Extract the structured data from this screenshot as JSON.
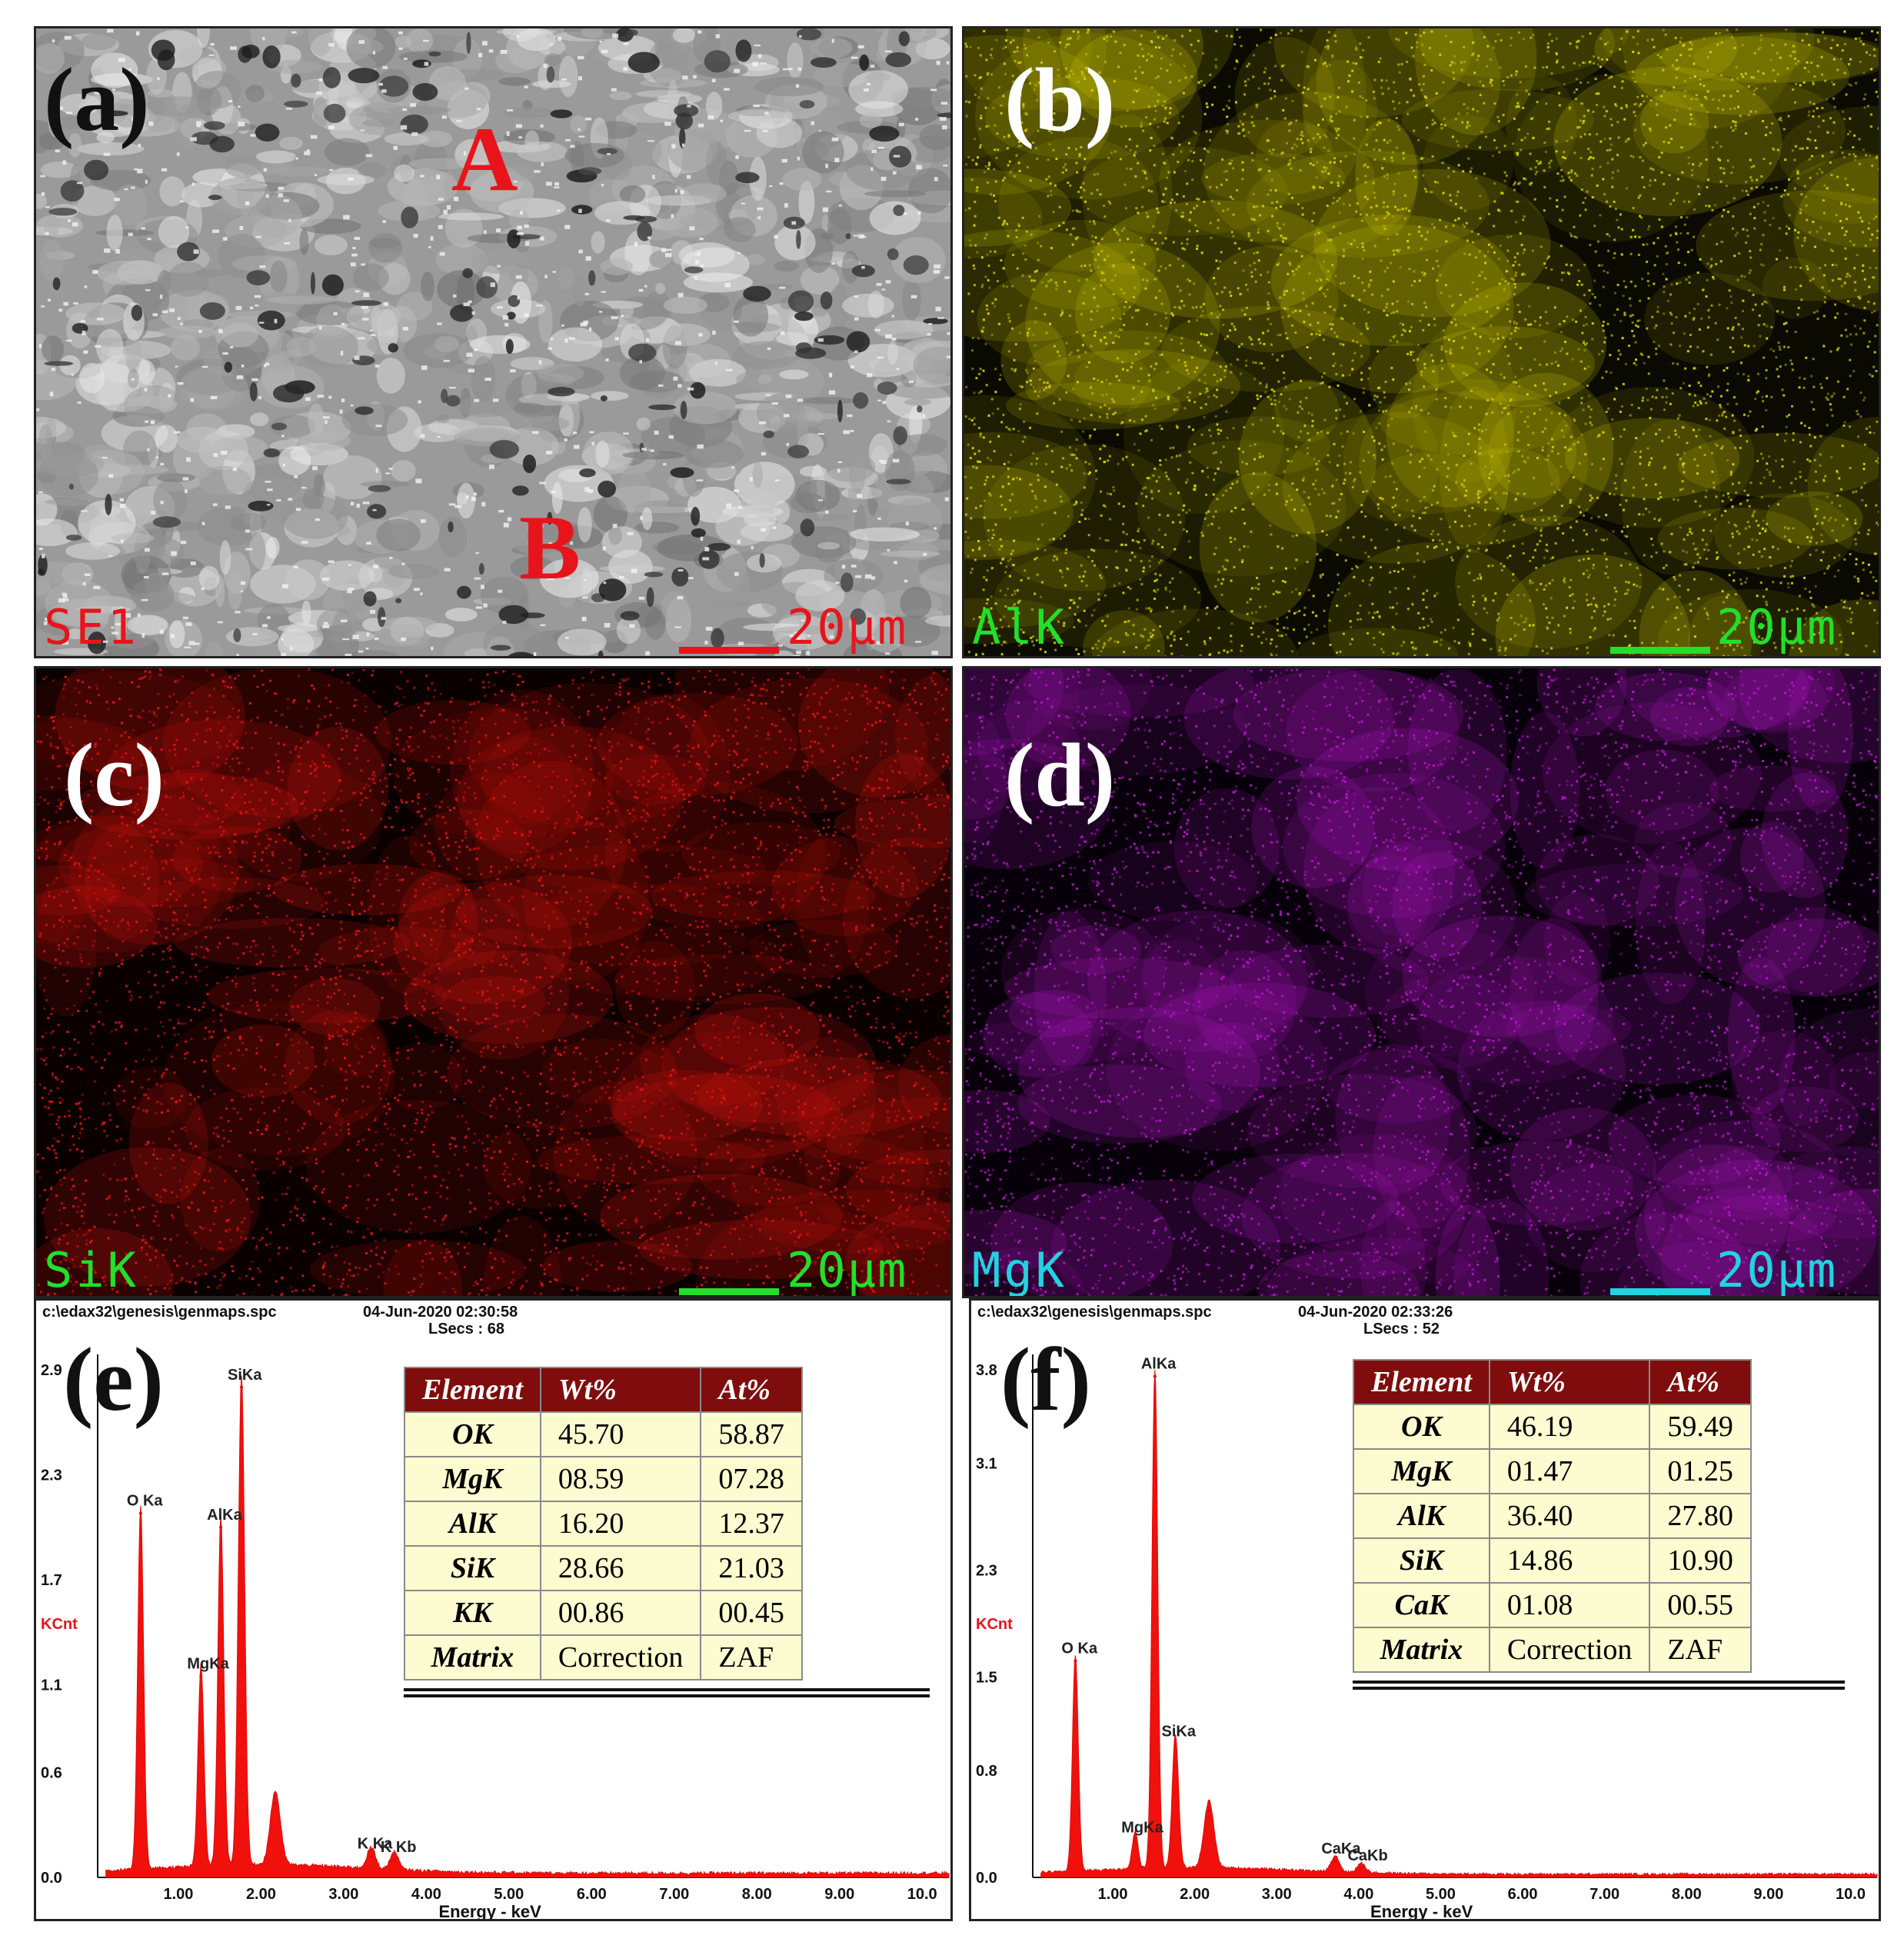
{
  "panels": [
    {
      "id": "a",
      "label": "(a)",
      "channel": "SE1",
      "scale": "20µm",
      "channel_color": "#e8141b",
      "scale_color": "#e8141b",
      "base": "#8a8a8a",
      "markers": [
        "A",
        "B"
      ]
    },
    {
      "id": "b",
      "label": "(b)",
      "channel": "AlK",
      "scale": "20µm",
      "channel_color": "#22e02a",
      "scale_color": "#22e02a",
      "base": "#d4d000"
    },
    {
      "id": "c",
      "label": "(c)",
      "channel": "SiK",
      "scale": "20µm",
      "channel_color": "#22e02a",
      "scale_color": "#22e02a",
      "base": "#e0140f"
    },
    {
      "id": "d",
      "label": "(d)",
      "channel": "MgK",
      "scale": "20µm",
      "channel_color": "#22d3e0",
      "scale_color": "#22d3e0",
      "base": "#b416c8"
    }
  ],
  "spectra": [
    {
      "id": "e",
      "label": "(e)",
      "path": "c:\\edax32\\genesis\\genmaps.spc",
      "datetime": "04-Jun-2020 02:30:58",
      "lsecs": "LSecs :  68",
      "ylabel": "KCnt",
      "xlabel": "Energy - keV",
      "yticks": [
        "0.0",
        "0.6",
        "1.1",
        "1.7",
        "2.3",
        "2.9"
      ],
      "ymax": 2.9,
      "xticks": [
        "1.00",
        "2.00",
        "3.00",
        "4.00",
        "5.00",
        "6.00",
        "7.00",
        "8.00",
        "9.00",
        "10.0"
      ],
      "peaks": [
        {
          "x": 0.52,
          "y": 2.08,
          "w": 0.035,
          "label": "O Ka"
        },
        {
          "x": 1.25,
          "y": 1.15,
          "w": 0.035,
          "label": "MgKa"
        },
        {
          "x": 1.49,
          "y": 2.0,
          "w": 0.035,
          "label": "AlKa"
        },
        {
          "x": 1.74,
          "y": 2.8,
          "w": 0.038,
          "label": "SiKa"
        },
        {
          "x": 2.15,
          "y": 0.42,
          "w": 0.06,
          "label": ""
        },
        {
          "x": 3.31,
          "y": 0.12,
          "w": 0.05,
          "label": "K Ka"
        },
        {
          "x": 3.59,
          "y": 0.1,
          "w": 0.05,
          "label": "K Kb"
        }
      ],
      "table": {
        "headers": [
          "Element",
          "Wt%",
          "At%"
        ],
        "rows": [
          [
            "OK",
            "45.70",
            "58.87"
          ],
          [
            "MgK",
            "08.59",
            "07.28"
          ],
          [
            "AlK",
            "16.20",
            "12.37"
          ],
          [
            "SiK",
            "28.66",
            "21.03"
          ],
          [
            "KK",
            "00.86",
            "00.45"
          ],
          [
            "Matrix",
            "Correction",
            "ZAF"
          ]
        ]
      }
    },
    {
      "id": "f",
      "label": "(f)",
      "path": "c:\\edax32\\genesis\\genmaps.spc",
      "datetime": "04-Jun-2020 02:33:26",
      "lsecs": "LSecs :  52",
      "ylabel": "KCnt",
      "xlabel": "Energy - keV",
      "yticks": [
        "0.0",
        "0.8",
        "1.5",
        "2.3",
        "3.1",
        "3.8"
      ],
      "ymax": 3.8,
      "xticks": [
        "1.00",
        "2.00",
        "3.00",
        "4.00",
        "5.00",
        "6.00",
        "7.00",
        "8.00",
        "9.00",
        "10.0"
      ],
      "peaks": [
        {
          "x": 0.52,
          "y": 1.62,
          "w": 0.035,
          "label": "O Ka"
        },
        {
          "x": 1.25,
          "y": 0.28,
          "w": 0.035,
          "label": "MgKa"
        },
        {
          "x": 1.49,
          "y": 3.75,
          "w": 0.035,
          "label": "AlKa"
        },
        {
          "x": 1.74,
          "y": 1.0,
          "w": 0.038,
          "label": "SiKa"
        },
        {
          "x": 2.15,
          "y": 0.5,
          "w": 0.06,
          "label": ""
        },
        {
          "x": 3.69,
          "y": 0.12,
          "w": 0.05,
          "label": "CaKa"
        },
        {
          "x": 4.01,
          "y": 0.07,
          "w": 0.05,
          "label": "CaKb"
        }
      ],
      "table": {
        "headers": [
          "Element",
          "Wt%",
          "At%"
        ],
        "rows": [
          [
            "OK",
            "46.19",
            "59.49"
          ],
          [
            "MgK",
            "01.47",
            "01.25"
          ],
          [
            "AlK",
            "36.40",
            "27.80"
          ],
          [
            "SiK",
            "14.86",
            "10.90"
          ],
          [
            "CaK",
            "01.08",
            "00.55"
          ],
          [
            "Matrix",
            "Correction",
            "ZAF"
          ]
        ]
      }
    }
  ],
  "chart_data": [
    {
      "type": "line",
      "title": "",
      "xlabel": "Energy - keV",
      "ylabel": "KCnt",
      "ylim": [
        0,
        2.9
      ],
      "xlim": [
        0,
        10
      ],
      "series": [
        {
          "x": [
            0.52,
            1.25,
            1.49,
            1.74,
            2.15,
            3.31,
            3.59
          ],
          "values": [
            2.08,
            1.15,
            2.0,
            2.8,
            0.42,
            0.12,
            0.1
          ]
        }
      ]
    },
    {
      "type": "line",
      "title": "",
      "xlabel": "Energy - keV",
      "ylabel": "KCnt",
      "ylim": [
        0,
        3.8
      ],
      "xlim": [
        0,
        10
      ],
      "series": [
        {
          "x": [
            0.52,
            1.25,
            1.49,
            1.74,
            2.15,
            3.69,
            4.01
          ],
          "values": [
            1.62,
            0.28,
            3.75,
            1.0,
            0.5,
            0.12,
            0.07
          ]
        }
      ]
    }
  ]
}
